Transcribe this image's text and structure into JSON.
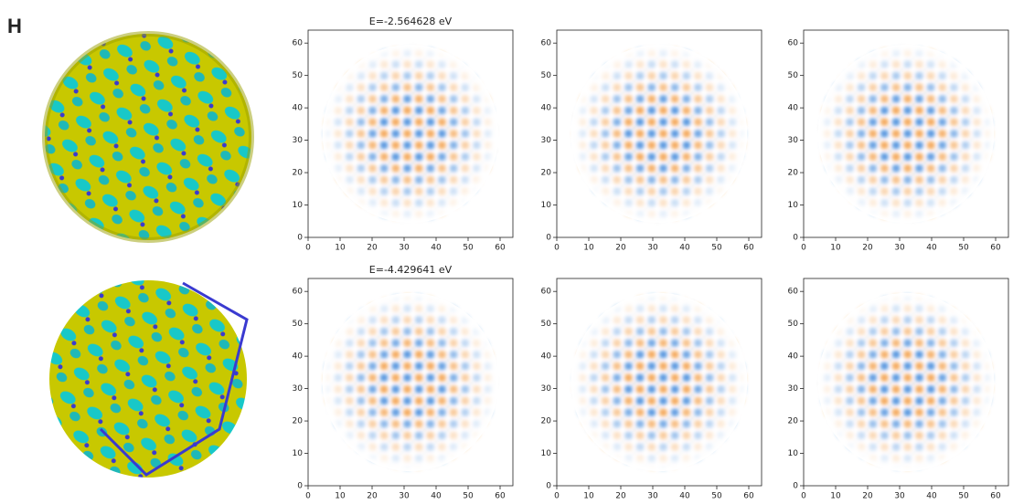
{
  "panel_label": "H",
  "rows": [
    {
      "title": "E=-2.564628 eV",
      "plots": [
        {
          "xlim": [
            0,
            64
          ],
          "ylim": [
            0,
            64
          ],
          "xticks": [
            0,
            10,
            20,
            30,
            40,
            50,
            60
          ],
          "yticks": [
            0,
            10,
            20,
            30,
            40,
            50,
            60
          ]
        },
        {
          "xlim": [
            0,
            64
          ],
          "ylim": [
            0,
            64
          ],
          "xticks": [
            0,
            10,
            20,
            30,
            40,
            50,
            60
          ],
          "yticks": [
            0,
            10,
            20,
            30,
            40,
            50,
            60
          ]
        },
        {
          "xlim": [
            0,
            64
          ],
          "ylim": [
            0,
            64
          ],
          "xticks": [
            0,
            10,
            20,
            30,
            40,
            50,
            60
          ],
          "yticks": [
            0,
            10,
            20,
            30,
            40,
            50,
            60
          ]
        }
      ]
    },
    {
      "title": "E=-4.429641 eV",
      "plots": [
        {
          "xlim": [
            0,
            64
          ],
          "ylim": [
            0,
            64
          ],
          "xticks": [
            0,
            10,
            20,
            30,
            40,
            50,
            60
          ],
          "yticks": [
            0,
            10,
            20,
            30,
            40,
            50,
            60
          ]
        },
        {
          "xlim": [
            0,
            64
          ],
          "ylim": [
            0,
            64
          ],
          "xticks": [
            0,
            10,
            20,
            30,
            40,
            50,
            60
          ],
          "yticks": [
            0,
            10,
            20,
            30,
            40,
            50,
            60
          ]
        },
        {
          "xlim": [
            0,
            64
          ],
          "ylim": [
            0,
            64
          ],
          "xticks": [
            0,
            10,
            20,
            30,
            40,
            50,
            60
          ],
          "yticks": [
            0,
            10,
            20,
            30,
            40,
            50,
            60
          ]
        }
      ]
    }
  ]
}
